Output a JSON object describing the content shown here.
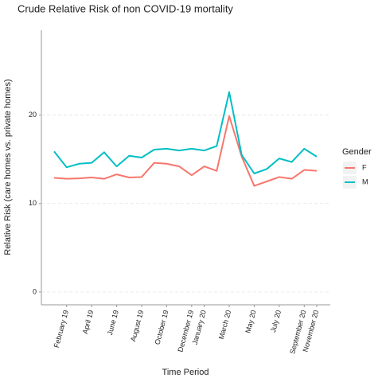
{
  "chart_data": {
    "type": "line",
    "title": "Crude Relative Risk of non COVID-19 mortality",
    "x_label": "Time Period",
    "y_label": "Relative Risk (care homes vs. private homes)",
    "legend_title": "Gender",
    "categories": [
      null,
      "February 19",
      null,
      "April 19",
      null,
      "June 19",
      null,
      "August 19",
      null,
      "October 19",
      null,
      "December 19",
      "January 20",
      null,
      "March 20",
      null,
      "May 20",
      null,
      "July 20",
      null,
      "September 20",
      "November 20"
    ],
    "series": [
      {
        "name": "F",
        "color": "#f8766d",
        "values": [
          12.9,
          12.8,
          12.85,
          12.95,
          12.8,
          13.3,
          12.95,
          13.0,
          14.6,
          14.5,
          14.2,
          13.2,
          14.2,
          13.7,
          19.9,
          15.3,
          12.0,
          12.5,
          13.0,
          12.8,
          13.8,
          13.7
        ]
      },
      {
        "name": "M",
        "color": "#00bfc4",
        "values": [
          15.9,
          14.1,
          14.5,
          14.6,
          15.8,
          14.2,
          15.4,
          15.2,
          16.1,
          16.2,
          16.0,
          16.2,
          16.0,
          16.5,
          22.6,
          15.5,
          13.4,
          13.9,
          15.1,
          14.7,
          16.2,
          15.3
        ]
      }
    ],
    "ylim": [
      -1.45,
      29.6
    ],
    "yticks": [
      0,
      10,
      20
    ],
    "grid": true,
    "legend": "right"
  }
}
